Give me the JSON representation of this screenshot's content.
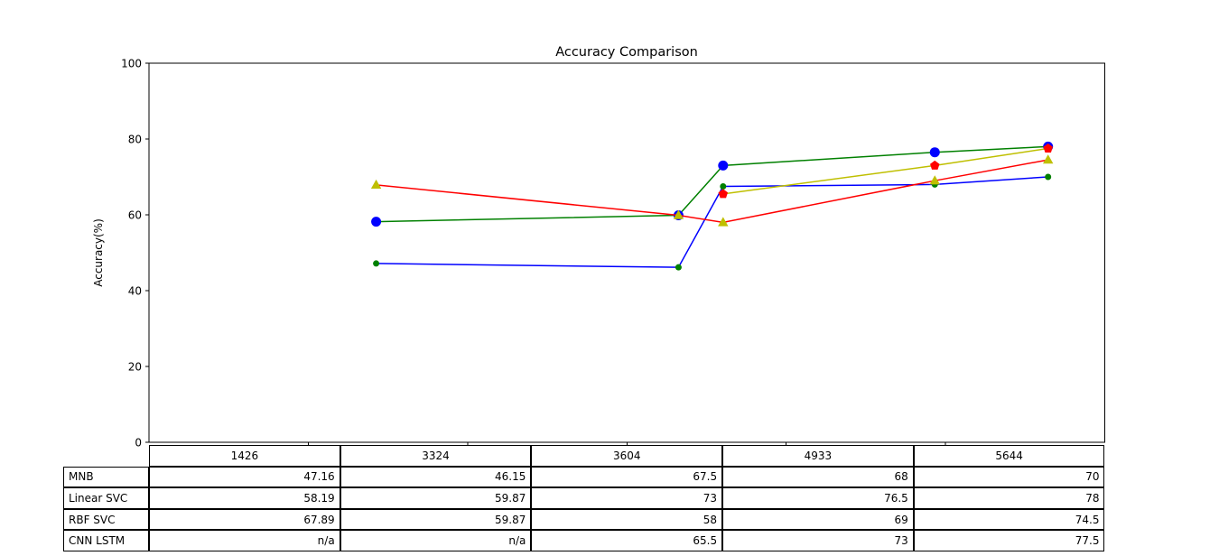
{
  "chart_data": {
    "type": "line",
    "title": "Accuracy Comparison",
    "xlabel": "",
    "ylabel": "Accuracy(%)",
    "x": [
      1426,
      3324,
      3604,
      4933,
      5644
    ],
    "xlim": [
      0,
      6000
    ],
    "ylim": [
      0,
      100
    ],
    "yticks": [
      0,
      20,
      40,
      60,
      80,
      100
    ],
    "xticks_unlabeled": [
      1000,
      2000,
      3000,
      4000,
      5000
    ],
    "grid": false,
    "legend_position": "none-table-below",
    "series": [
      {
        "name": "MNB",
        "line_color": "#0000ff",
        "marker": "circle",
        "marker_color": "#008000",
        "marker_size": 7,
        "values": [
          47.16,
          46.15,
          67.5,
          68,
          70
        ]
      },
      {
        "name": "Linear SVC",
        "line_color": "#008000",
        "marker": "circle",
        "marker_color": "#0000ff",
        "marker_size": 11,
        "values": [
          58.19,
          59.87,
          73,
          76.5,
          78
        ]
      },
      {
        "name": "RBF SVC",
        "line_color": "#ff0000",
        "marker": "triangle",
        "marker_color": "#bfbf00",
        "marker_size": 12,
        "values": [
          67.89,
          59.87,
          58,
          69,
          74.5
        ]
      },
      {
        "name": "CNN LSTM",
        "line_color": "#bfbf00",
        "marker": "pentagon",
        "marker_color": "#ff0000",
        "marker_size": 11,
        "values": [
          null,
          null,
          65.5,
          73,
          77.5
        ]
      }
    ],
    "table": {
      "col_labels": [
        "1426",
        "3324",
        "3604",
        "4933",
        "5644"
      ],
      "row_labels": [
        "MNB",
        "Linear SVC",
        "RBF SVC",
        "CNN LSTM"
      ],
      "cells": [
        [
          "47.16",
          "46.15",
          "67.5",
          "68",
          "70"
        ],
        [
          "58.19",
          "59.87",
          "73",
          "76.5",
          "78"
        ],
        [
          "67.89",
          "59.87",
          "58",
          "69",
          "74.5"
        ],
        [
          "n/a",
          "n/a",
          "65.5",
          "73",
          "77.5"
        ]
      ]
    },
    "colors": {
      "axis": "#000000",
      "background": "#ffffff",
      "blue": "#0000ff",
      "green": "#008000",
      "red": "#ff0000",
      "yellow": "#bfbf00"
    }
  }
}
